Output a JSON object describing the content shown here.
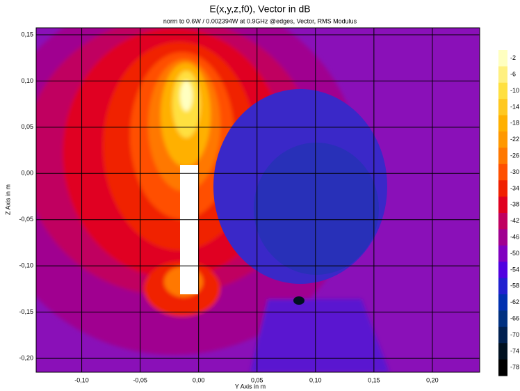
{
  "chart_data": {
    "type": "heatmap",
    "title": "E(x,y,z,f0), Vector in dB",
    "subtitle": "norm to 0.6W / 0.002394W at 0.9GHz @edges, Vector, RMS Modulus",
    "x_label": "Y Axis in m",
    "y_label": "Z Axis in m",
    "xlim": [
      -0.139,
      0.2405
    ],
    "ylim": [
      -0.215,
      0.1575
    ],
    "xticks": [
      {
        "value": -0.1,
        "label": "-0,10"
      },
      {
        "value": -0.05,
        "label": "-0,05"
      },
      {
        "value": 0,
        "label": "0,00"
      },
      {
        "value": 0.05,
        "label": "0,05"
      },
      {
        "value": 0.1,
        "label": "0,10"
      },
      {
        "value": 0.15,
        "label": "0,15"
      },
      {
        "value": 0.2,
        "label": "0,20"
      }
    ],
    "yticks": [
      {
        "value": 0.15,
        "label": "0,15"
      },
      {
        "value": 0.1,
        "label": "0,10"
      },
      {
        "value": 0.05,
        "label": "0,05"
      },
      {
        "value": 0,
        "label": "0,00"
      },
      {
        "value": -0.05,
        "label": "-0,05"
      },
      {
        "value": -0.1,
        "label": "-0,10"
      },
      {
        "value": -0.15,
        "label": "-0,15"
      },
      {
        "value": -0.2,
        "label": "-0,20"
      }
    ],
    "grid": true,
    "colorbar": {
      "levels": [
        -2,
        -6,
        -10,
        -14,
        -18,
        -22,
        -26,
        -30,
        -34,
        -38,
        -42,
        -46,
        -50,
        -54,
        -58,
        -62,
        -66,
        -70,
        -74,
        -78
      ],
      "colors": [
        "#ffffc0",
        "#fff080",
        "#ffe040",
        "#ffc820",
        "#ffb000",
        "#ff9800",
        "#ff7800",
        "#ff5000",
        "#f02000",
        "#e00020",
        "#c00060",
        "#a00090",
        "#8000c0",
        "#5000e0",
        "#2020d0",
        "#0030b0",
        "#003080",
        "#002050",
        "#001020",
        "#000000"
      ]
    }
  }
}
